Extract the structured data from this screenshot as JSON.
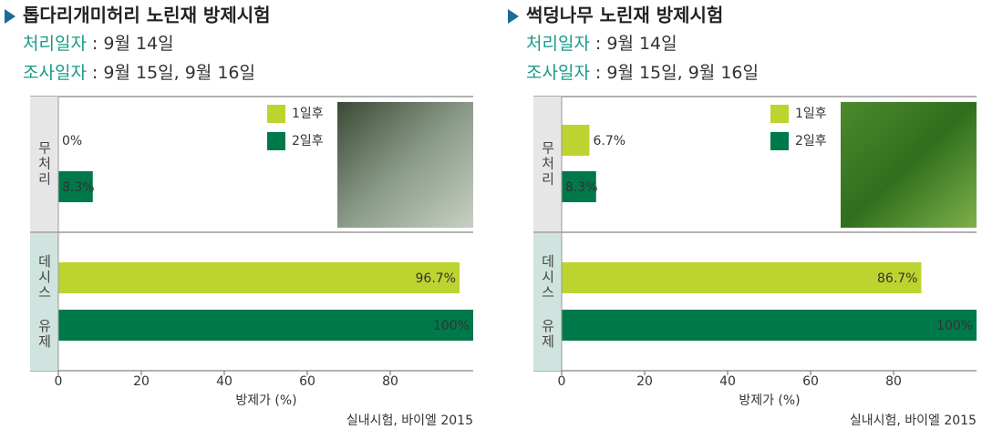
{
  "chart_data": [
    {
      "type": "hbar",
      "title": "톱다리개미허리 노린재 방제시험",
      "info": [
        {
          "label": "처리일자",
          "text": ": 9월 14일"
        },
        {
          "label": "조사일자",
          "text": ": 9월 15일, 9월 16일"
        }
      ],
      "categories": [
        "무처리",
        "데시스 유제"
      ],
      "series": [
        {
          "name": "1일후",
          "color": "#bdd430",
          "values": [
            0,
            96.7
          ],
          "value_labels": [
            "0%",
            "96.7%"
          ]
        },
        {
          "name": "2일후",
          "color": "#00794a",
          "values": [
            8.3,
            100
          ],
          "value_labels": [
            "8.3%",
            "100%"
          ]
        }
      ],
      "xlim": [
        0,
        100
      ],
      "xticks": [
        0,
        20,
        40,
        60,
        80
      ],
      "xlabel": "방제가 (%)",
      "source": "실내시험, 바이엘 2015"
    },
    {
      "type": "hbar",
      "title": "썩덩나무 노린재 방제시험",
      "info": [
        {
          "label": "처리일자",
          "text": ": 9월 14일"
        },
        {
          "label": "조사일자",
          "text": ": 9월 15일, 9월 16일"
        }
      ],
      "categories": [
        "무처리",
        "데시스 유제"
      ],
      "series": [
        {
          "name": "1일후",
          "color": "#bdd430",
          "values": [
            6.7,
            86.7
          ],
          "value_labels": [
            "6.7%",
            "86.7%"
          ]
        },
        {
          "name": "2일후",
          "color": "#00794a",
          "values": [
            8.3,
            100
          ],
          "value_labels": [
            "8.3%",
            "100%"
          ]
        }
      ],
      "xlim": [
        0,
        100
      ],
      "xticks": [
        0,
        20,
        40,
        60,
        80
      ],
      "xlabel": "방제가 (%)",
      "source": "실내시험, 바이엘 2015"
    }
  ]
}
